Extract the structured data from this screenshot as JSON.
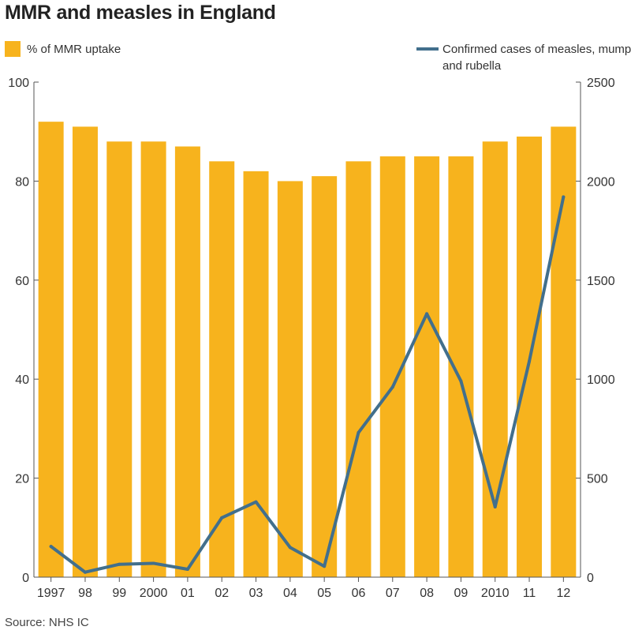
{
  "title": "MMR and measles in England",
  "source": "Source: NHS IC",
  "colors": {
    "bar": "#F7B31D",
    "line": "#426F8C",
    "axis": "#555555"
  },
  "legend": {
    "bar_label": "% of MMR uptake",
    "line_label": "Confirmed cases of measles, mumps and rubella"
  },
  "chart_data": {
    "type": "bar+line",
    "title": "MMR and measles in England",
    "categories": [
      "1997",
      "98",
      "99",
      "2000",
      "01",
      "02",
      "03",
      "04",
      "05",
      "06",
      "07",
      "08",
      "09",
      "2010",
      "11",
      "12"
    ],
    "series": [
      {
        "name": "% of MMR uptake",
        "type": "bar",
        "axis": "left",
        "values": [
          92,
          91,
          88,
          88,
          87,
          84,
          82,
          80,
          81,
          84,
          85,
          85,
          85,
          88,
          89,
          91
        ]
      },
      {
        "name": "Confirmed cases of measles, mumps and rubella",
        "type": "line",
        "axis": "right",
        "values": [
          155,
          25,
          65,
          70,
          40,
          300,
          380,
          150,
          55,
          730,
          960,
          1330,
          990,
          355,
          1090,
          1920
        ]
      }
    ],
    "y_left": {
      "min": 0,
      "max": 100,
      "ticks": [
        0,
        20,
        40,
        60,
        80,
        100
      ]
    },
    "y_right": {
      "min": 0,
      "max": 2500,
      "ticks": [
        0,
        500,
        1000,
        1500,
        2000,
        2500
      ]
    },
    "grid": false,
    "legend_position": "top"
  }
}
